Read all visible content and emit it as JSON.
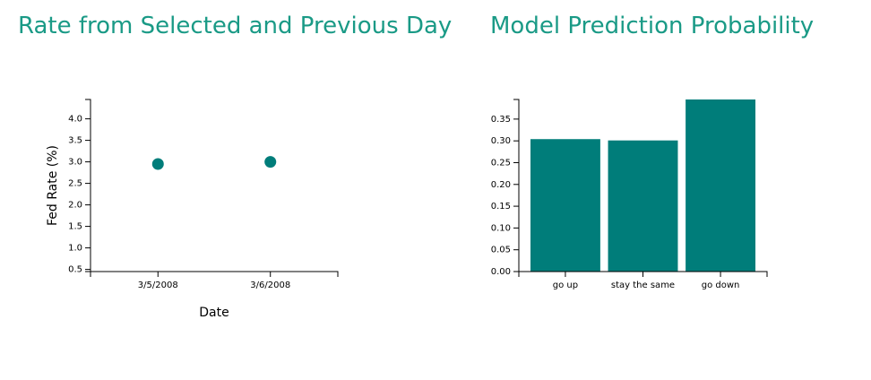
{
  "charts": {
    "left_title": "Rate from Selected and Previous Day",
    "right_title": "Model Prediction Probability"
  },
  "colors": {
    "title": "#1a9a86",
    "mark": "#007d7a"
  },
  "chart_data": [
    {
      "type": "scatter",
      "title": "Rate from Selected and Previous Day",
      "xlabel": "Date",
      "ylabel": "Fed Rate (%)",
      "categories": [
        "3/5/2008",
        "3/6/2008"
      ],
      "values": [
        2.95,
        3.0
      ],
      "yticks": [
        "0.5",
        "1.0",
        "1.5",
        "2.0",
        "2.5",
        "3.0",
        "3.5",
        "4.0"
      ],
      "ylim": [
        0.45,
        4.45
      ]
    },
    {
      "type": "bar",
      "title": "Model Prediction Probability",
      "xlabel": "",
      "ylabel": "",
      "categories": [
        "go up",
        "stay the same",
        "go down"
      ],
      "values": [
        0.304,
        0.301,
        0.395
      ],
      "yticks": [
        "0.00",
        "0.05",
        "0.10",
        "0.15",
        "0.20",
        "0.25",
        "0.30",
        "0.35"
      ],
      "ylim": [
        0,
        0.395
      ]
    }
  ]
}
